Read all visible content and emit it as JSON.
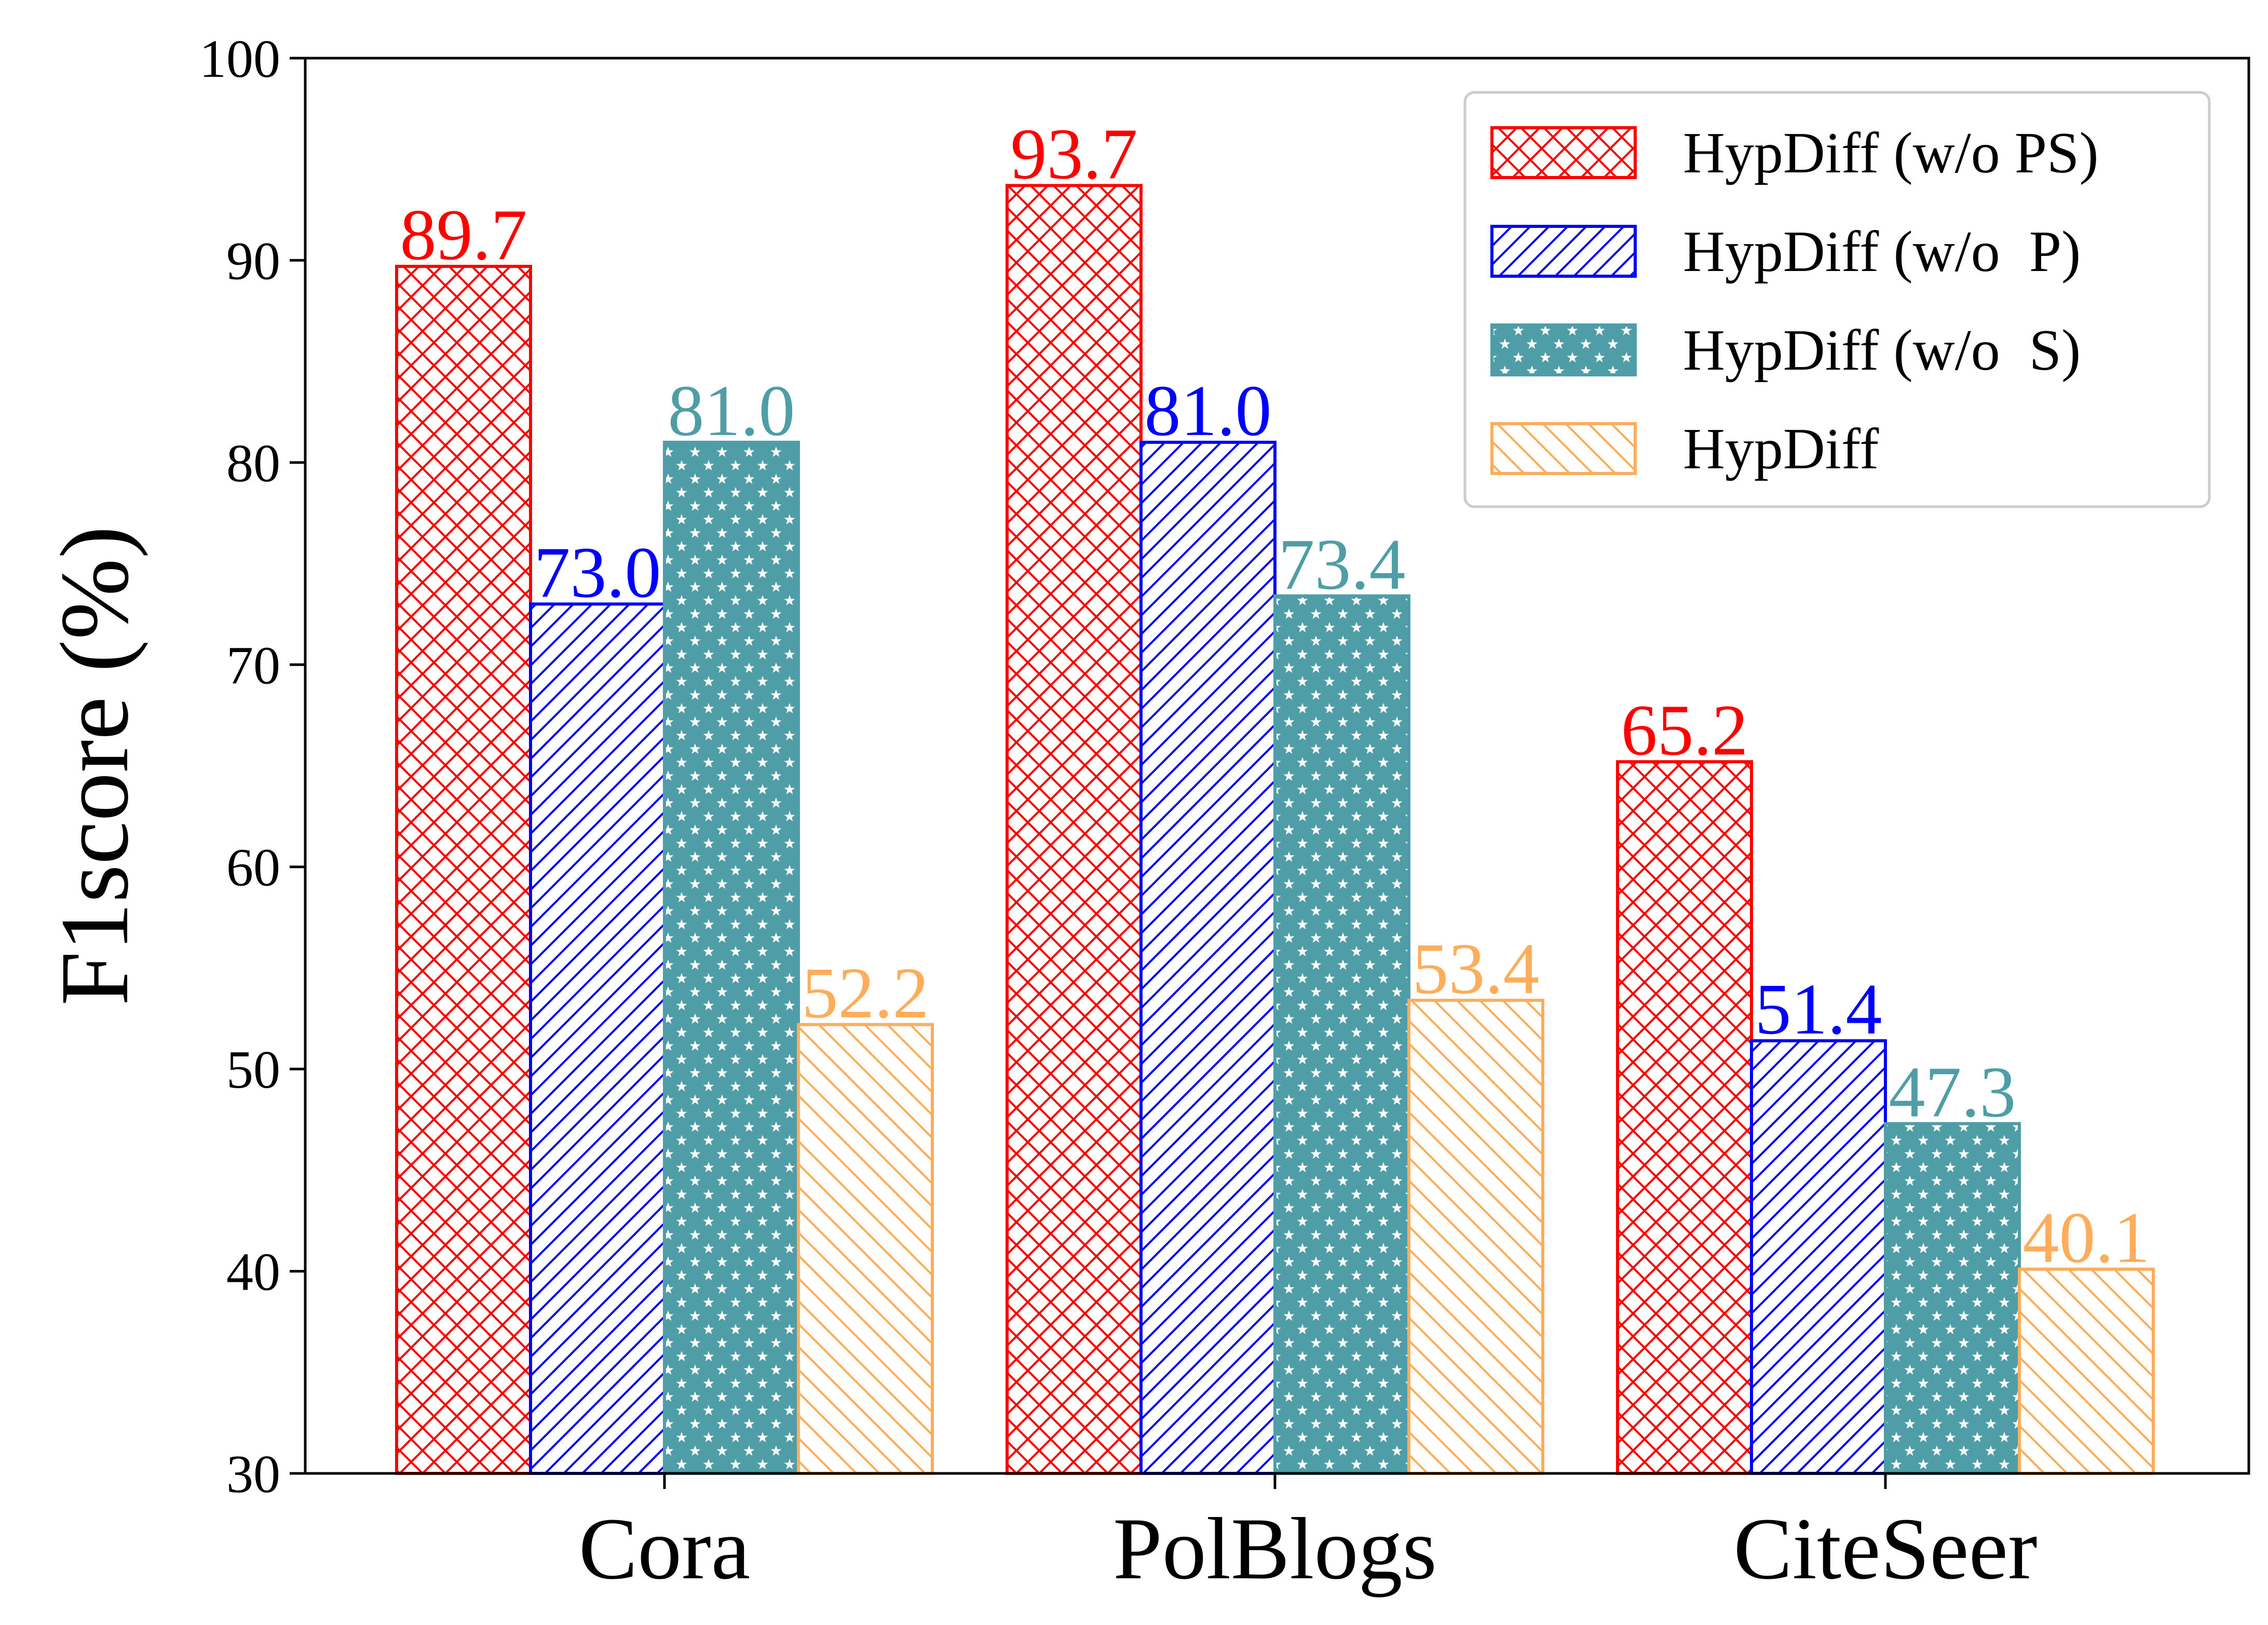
{
  "chart_data": {
    "type": "bar",
    "categories": [
      "Cora",
      "PolBlogs",
      "CiteSeer"
    ],
    "series": [
      {
        "name": "HypDiff (w/o PS)",
        "values": [
          89.7,
          93.7,
          65.2
        ],
        "labels": [
          "89.7",
          "93.7",
          "65.2"
        ],
        "color": "#ff0000",
        "hatch": "crosshatch"
      },
      {
        "name": "HypDiff (w/o  P)",
        "values": [
          73.0,
          81.0,
          51.4
        ],
        "labels": [
          "73.0",
          "81.0",
          "51.4"
        ],
        "color": "#0000ff",
        "hatch": "forward-diagonal"
      },
      {
        "name": "HypDiff (w/o  S)",
        "values": [
          81.0,
          73.4,
          47.3
        ],
        "labels": [
          "81.0",
          "73.4",
          "47.3"
        ],
        "color": "#4f9da6",
        "hatch": "stars"
      },
      {
        "name": "HypDiff",
        "values": [
          52.2,
          53.4,
          40.1
        ],
        "labels": [
          "52.2",
          "53.4",
          "40.1"
        ],
        "color": "#ffad5a",
        "hatch": "back-diagonal"
      }
    ],
    "ylabel": "F1score (%)",
    "xlabel": "",
    "ylim": [
      30,
      100
    ],
    "yticks": [
      "30",
      "40",
      "50",
      "60",
      "70",
      "80",
      "90",
      "100"
    ],
    "grid": false,
    "legend_position": "top-right"
  }
}
